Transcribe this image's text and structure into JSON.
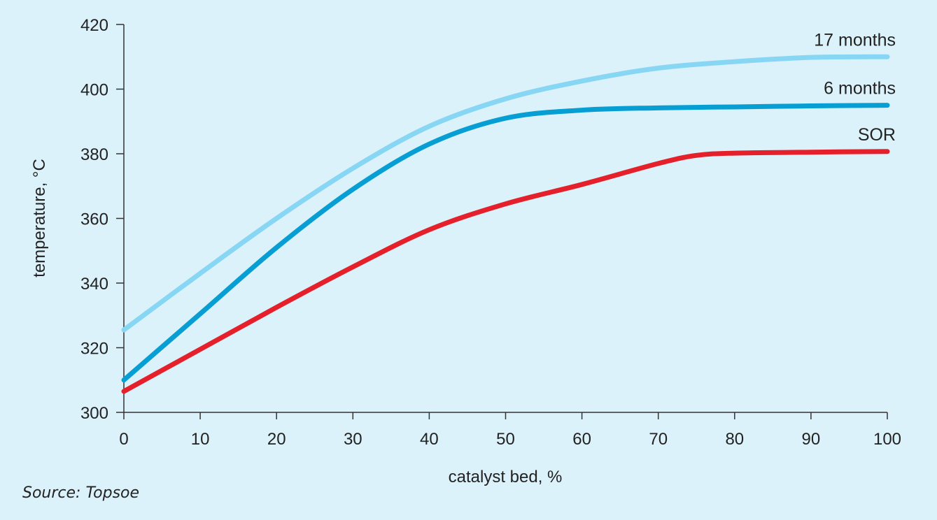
{
  "chart_data": {
    "type": "line",
    "xlabel": "catalyst bed, %",
    "ylabel": "temperature, °C",
    "xlim": [
      0,
      100
    ],
    "ylim": [
      300,
      420
    ],
    "x_ticks": [
      0,
      10,
      20,
      30,
      40,
      50,
      60,
      70,
      80,
      90,
      100
    ],
    "y_ticks": [
      300,
      320,
      340,
      360,
      380,
      400,
      420
    ],
    "grid": false,
    "legend": "direct labels at line ends",
    "series": [
      {
        "name": "17 months",
        "color": "#87d6f4",
        "x": [
          0,
          10,
          20,
          30,
          40,
          50,
          60,
          70,
          80,
          90,
          100
        ],
        "y": [
          325.5,
          343,
          360,
          375.5,
          388.5,
          397,
          402.5,
          406.5,
          408.5,
          409.8,
          410
        ]
      },
      {
        "name": "6 months",
        "color": "#079fd3",
        "x": [
          0,
          10,
          20,
          30,
          40,
          50,
          60,
          70,
          80,
          90,
          100
        ],
        "y": [
          310,
          330.5,
          351,
          369,
          383,
          391,
          393.5,
          394.2,
          394.5,
          394.8,
          395
        ]
      },
      {
        "name": "SOR",
        "color": "#e5202b",
        "x": [
          0,
          10,
          20,
          30,
          40,
          50,
          60,
          70,
          75,
          80,
          90,
          100
        ],
        "y": [
          306.5,
          319.5,
          332.5,
          345,
          356.5,
          364.5,
          370.5,
          377,
          379.5,
          380.2,
          380.5,
          380.7
        ]
      }
    ]
  },
  "source": "Source: Topsoe"
}
